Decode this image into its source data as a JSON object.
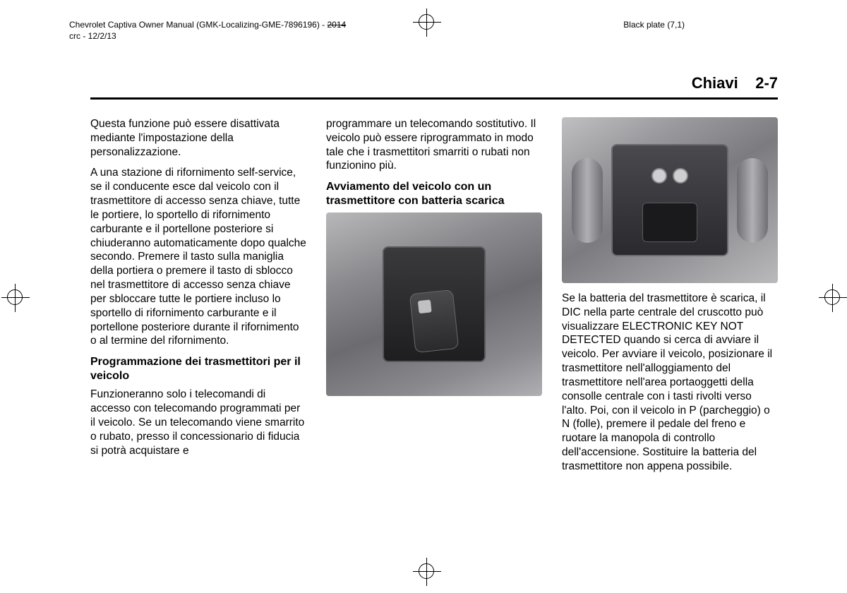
{
  "header": {
    "manual_line1": "Chevrolet Captiva Owner Manual (GMK-Localizing-GME-7896196) - ",
    "year_struck": "2014",
    "manual_line2": "crc - 12/2/13",
    "plate_label": "Black plate (7,1)"
  },
  "page_title": {
    "section": "Chiavi",
    "number": "2-7"
  },
  "col1": {
    "p1": "Questa funzione può essere disattivata mediante l'impostazione della personalizzazione.",
    "p2": "A una stazione di rifornimento self-service, se il conducente esce dal veicolo con il trasmettitore di accesso senza chiave, tutte le portiere, lo sportello di rifornimento carburante e il portellone posteriore si chiuderanno automaticamente dopo qualche secondo. Premere il tasto sulla maniglia della portiera o premere il tasto di sblocco nel trasmettitore di accesso senza chiave per sbloccare tutte le portiere incluso lo sportello di rifornimento carburante e il portellone posteriore durante il rifornimento o al termine del rifornimento.",
    "h1": "Programmazione dei trasmettitori per il veicolo",
    "p3": "Funzioneranno solo i telecomandi di accesso con telecomando programmati per il veicolo. Se un telecomando viene smarrito o rubato, presso il concessionario di fiducia si potrà acquistare e"
  },
  "col2": {
    "p1": "programmare un telecomando sostitutivo. Il veicolo può essere riprogrammato in modo tale che i trasmettitori smarriti o rubati non funzionino più.",
    "h1": "Avviamento del veicolo con un trasmettitore con batteria scarica"
  },
  "col3": {
    "p1": "Se la batteria del trasmettitore è scarica, il DIC nella parte centrale del cruscotto può visualizzare ELECTRONIC KEY NOT DETECTED quando si cerca di avviare il veicolo. Per avviare il veicolo, posizionare il trasmettitore nell'alloggiamento del trasmettitore nell'area portaoggetti della consolle centrale con i tasti rivolti verso l'alto. Poi, con il veicolo in P (parcheggio) o N (folle), premere il pedale del freno e ruotare la manopola di controllo dell'accensione. Sostituire la batteria del trasmettitore non appena possibile."
  }
}
